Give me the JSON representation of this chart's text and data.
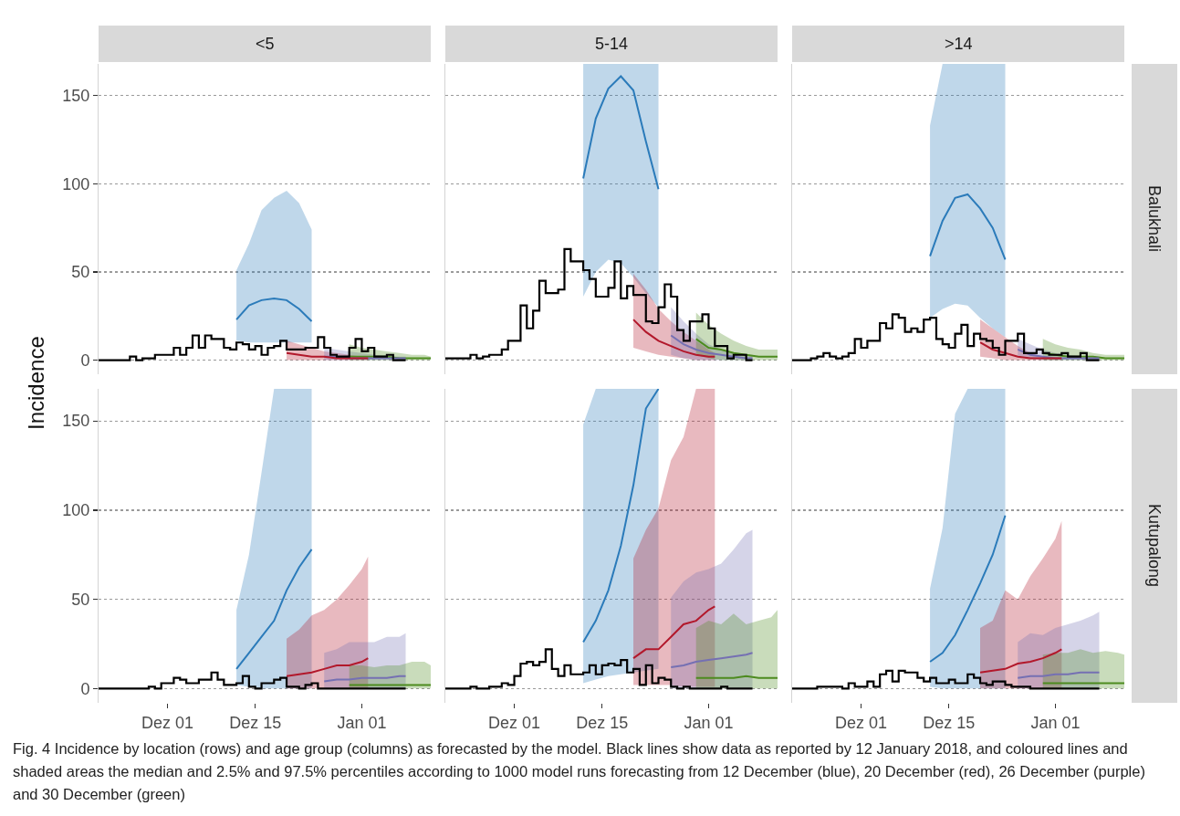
{
  "chart_data": [
    {
      "type": "step",
      "title": "<5",
      "ylabel": "Incidence",
      "tick_labels": "y",
      "grid": "y",
      "xlim": [
        "2017-11-20",
        "2018-01-12"
      ],
      "ylim": [
        -8,
        168
      ],
      "yticks": [
        0,
        50,
        100,
        150
      ],
      "x": [
        "2017-11-20",
        "2017-11-21",
        "2017-11-22",
        "2017-11-23",
        "2017-11-24",
        "2017-11-25",
        "2017-11-26",
        "2017-11-27",
        "2017-11-28",
        "2017-11-29",
        "2017-11-30",
        "2017-12-01",
        "2017-12-02",
        "2017-12-03",
        "2017-12-04",
        "2017-12-05",
        "2017-12-06",
        "2017-12-07",
        "2017-12-08",
        "2017-12-09",
        "2017-12-10",
        "2017-12-11",
        "2017-12-12",
        "2017-12-13",
        "2017-12-14",
        "2017-12-15",
        "2017-12-16",
        "2017-12-17",
        "2017-12-18",
        "2017-12-19",
        "2017-12-20",
        "2017-12-21",
        "2017-12-22",
        "2017-12-23",
        "2017-12-24",
        "2017-12-25",
        "2017-12-26",
        "2017-12-27",
        "2017-12-28",
        "2017-12-29",
        "2017-12-30",
        "2017-12-31",
        "2018-01-01",
        "2018-01-02",
        "2018-01-03",
        "2018-01-04",
        "2018-01-05",
        "2018-01-06",
        "2018-01-07",
        "2018-01-08"
      ],
      "series": [
        {
          "color": "#000000",
          "values": [
            0,
            0,
            0,
            0,
            0,
            2,
            0,
            1,
            1,
            3,
            3,
            3,
            7,
            3,
            7,
            14,
            7,
            14,
            12,
            12,
            7,
            6,
            10,
            9,
            6,
            8,
            3,
            7,
            8,
            11,
            6,
            6,
            6,
            7,
            7,
            13,
            7,
            3,
            2,
            2,
            7,
            12,
            5,
            7,
            2,
            2,
            3,
            0,
            0,
            0
          ]
        },
        {
          "type": "line",
          "color": "#2b7bba",
          "x": [
            "2017-12-12",
            "2017-12-14",
            "2017-12-16",
            "2017-12-18",
            "2017-12-20",
            "2017-12-22",
            "2017-12-24"
          ],
          "values": [
            23,
            31,
            34,
            35,
            34,
            29,
            22
          ],
          "lower": [
            11,
            10,
            10,
            10,
            10,
            10,
            10
          ],
          "upper": [
            51,
            66,
            85,
            92,
            96,
            89,
            74
          ]
        },
        {
          "type": "line",
          "color": "#b2182b",
          "x": [
            "2017-12-20",
            "2017-12-22",
            "2017-12-24",
            "2017-12-26",
            "2017-12-28",
            "2017-12-30",
            "2018-01-01",
            "2018-01-02"
          ],
          "values": [
            4,
            3,
            2,
            2,
            1,
            1,
            1,
            1
          ],
          "lower": [
            0,
            0,
            0,
            0,
            0,
            0,
            0,
            0
          ],
          "upper": [
            11,
            9,
            7,
            5,
            4,
            3,
            2,
            2
          ]
        },
        {
          "type": "line",
          "color": "#7570b3",
          "x": [
            "2017-12-26",
            "2017-12-28",
            "2017-12-30",
            "2018-01-01",
            "2018-01-03",
            "2018-01-05",
            "2018-01-07",
            "2018-01-08"
          ],
          "values": [
            2,
            2,
            1,
            1,
            1,
            1,
            1,
            1
          ],
          "lower": [
            0,
            0,
            0,
            0,
            0,
            0,
            0,
            0
          ],
          "upper": [
            7,
            6,
            5,
            4,
            3,
            2,
            2,
            2
          ]
        },
        {
          "type": "line",
          "color": "#4d8b1f",
          "x": [
            "2017-12-30",
            "2018-01-01",
            "2018-01-03",
            "2018-01-05",
            "2018-01-07",
            "2018-01-09",
            "2018-01-11",
            "2018-01-12"
          ],
          "values": [
            2,
            2,
            2,
            2,
            1,
            1,
            1,
            1
          ],
          "lower": [
            0,
            0,
            0,
            0,
            0,
            0,
            0,
            0
          ],
          "upper": [
            9,
            7,
            6,
            5,
            4,
            3,
            3,
            2
          ]
        }
      ]
    },
    {
      "type": "step",
      "title": "5-14",
      "tick_labels": false,
      "grid": "y",
      "xlim": [
        "2017-11-20",
        "2018-01-12"
      ],
      "ylim": [
        -8,
        168
      ],
      "yticks": [
        0,
        50,
        100,
        150
      ],
      "x": [
        "2017-11-20",
        "2017-11-21",
        "2017-11-22",
        "2017-11-23",
        "2017-11-24",
        "2017-11-25",
        "2017-11-26",
        "2017-11-27",
        "2017-11-28",
        "2017-11-29",
        "2017-11-30",
        "2017-12-01",
        "2017-12-02",
        "2017-12-03",
        "2017-12-04",
        "2017-12-05",
        "2017-12-06",
        "2017-12-07",
        "2017-12-08",
        "2017-12-09",
        "2017-12-10",
        "2017-12-11",
        "2017-12-12",
        "2017-12-13",
        "2017-12-14",
        "2017-12-15",
        "2017-12-16",
        "2017-12-17",
        "2017-12-18",
        "2017-12-19",
        "2017-12-20",
        "2017-12-21",
        "2017-12-22",
        "2017-12-23",
        "2017-12-24",
        "2017-12-25",
        "2017-12-26",
        "2017-12-27",
        "2017-12-28",
        "2017-12-29",
        "2017-12-30",
        "2017-12-31",
        "2018-01-01",
        "2018-01-02",
        "2018-01-03",
        "2018-01-04",
        "2018-01-05",
        "2018-01-06",
        "2018-01-07",
        "2018-01-08"
      ],
      "series": [
        {
          "color": "#000000",
          "values": [
            1,
            1,
            1,
            1,
            3,
            1,
            2,
            3,
            3,
            6,
            11,
            11,
            31,
            18,
            28,
            45,
            38,
            38,
            40,
            63,
            56,
            56,
            51,
            46,
            36,
            36,
            41,
            56,
            35,
            42,
            37,
            37,
            22,
            21,
            30,
            43,
            36,
            17,
            11,
            22,
            22,
            26,
            18,
            8,
            8,
            1,
            3,
            3,
            0,
            0
          ]
        },
        {
          "type": "line",
          "color": "#2b7bba",
          "x": [
            "2017-12-12",
            "2017-12-14",
            "2017-12-16",
            "2017-12-18",
            "2017-12-20",
            "2017-12-22",
            "2017-12-24"
          ],
          "values": [
            103,
            137,
            154,
            161,
            153,
            124,
            97
          ],
          "lower": [
            36,
            50,
            57,
            55,
            47,
            38,
            30
          ],
          "upper": [
            168,
            168,
            168,
            168,
            168,
            168,
            168
          ]
        },
        {
          "type": "line",
          "color": "#b2182b",
          "x": [
            "2017-12-20",
            "2017-12-22",
            "2017-12-24",
            "2017-12-26",
            "2017-12-28",
            "2017-12-30",
            "2018-01-01",
            "2018-01-02"
          ],
          "values": [
            23,
            16,
            11,
            8,
            5,
            3,
            2,
            2
          ],
          "lower": [
            7,
            5,
            3,
            2,
            1,
            0,
            0,
            0
          ],
          "upper": [
            49,
            40,
            29,
            22,
            16,
            11,
            6,
            4
          ]
        },
        {
          "type": "line",
          "color": "#7570b3",
          "x": [
            "2017-12-26",
            "2017-12-28",
            "2017-12-30",
            "2018-01-01",
            "2018-01-03",
            "2018-01-05",
            "2018-01-07",
            "2018-01-08"
          ],
          "values": [
            14,
            9,
            6,
            4,
            3,
            2,
            1,
            1
          ],
          "lower": [
            3,
            1,
            0,
            0,
            0,
            0,
            0,
            0
          ],
          "upper": [
            30,
            22,
            15,
            9,
            6,
            4,
            3,
            3
          ]
        },
        {
          "type": "line",
          "color": "#4d8b1f",
          "x": [
            "2017-12-30",
            "2018-01-01",
            "2018-01-03",
            "2018-01-05",
            "2018-01-07",
            "2018-01-09",
            "2018-01-11",
            "2018-01-12"
          ],
          "values": [
            12,
            7,
            6,
            4,
            3,
            2,
            2,
            2
          ],
          "lower": [
            3,
            1,
            0,
            0,
            0,
            0,
            0,
            0
          ],
          "upper": [
            27,
            20,
            15,
            11,
            8,
            6,
            6,
            6
          ]
        }
      ]
    },
    {
      "type": "step",
      "title": ">14",
      "annotations": [
        "Balukhali"
      ],
      "tick_labels": false,
      "grid": "y",
      "xlim": [
        "2017-11-20",
        "2018-01-12"
      ],
      "ylim": [
        -8,
        168
      ],
      "yticks": [
        0,
        50,
        100,
        150
      ],
      "x": [
        "2017-11-20",
        "2017-11-21",
        "2017-11-22",
        "2017-11-23",
        "2017-11-24",
        "2017-11-25",
        "2017-11-26",
        "2017-11-27",
        "2017-11-28",
        "2017-11-29",
        "2017-11-30",
        "2017-12-01",
        "2017-12-02",
        "2017-12-03",
        "2017-12-04",
        "2017-12-05",
        "2017-12-06",
        "2017-12-07",
        "2017-12-08",
        "2017-12-09",
        "2017-12-10",
        "2017-12-11",
        "2017-12-12",
        "2017-12-13",
        "2017-12-14",
        "2017-12-15",
        "2017-12-16",
        "2017-12-17",
        "2017-12-18",
        "2017-12-19",
        "2017-12-20",
        "2017-12-21",
        "2017-12-22",
        "2017-12-23",
        "2017-12-24",
        "2017-12-25",
        "2017-12-26",
        "2017-12-27",
        "2017-12-28",
        "2017-12-29",
        "2017-12-30",
        "2017-12-31",
        "2018-01-01",
        "2018-01-02",
        "2018-01-03",
        "2018-01-04",
        "2018-01-05",
        "2018-01-06",
        "2018-01-07",
        "2018-01-08"
      ],
      "series": [
        {
          "color": "#000000",
          "values": [
            0,
            0,
            0,
            1,
            2,
            4,
            2,
            1,
            2,
            4,
            12,
            7,
            11,
            11,
            21,
            18,
            26,
            24,
            16,
            18,
            16,
            23,
            24,
            12,
            9,
            7,
            15,
            20,
            8,
            15,
            12,
            11,
            7,
            3,
            11,
            11,
            15,
            4,
            4,
            6,
            4,
            3,
            3,
            4,
            2,
            2,
            4,
            0,
            0,
            0
          ]
        },
        {
          "type": "line",
          "color": "#2b7bba",
          "x": [
            "2017-12-12",
            "2017-12-14",
            "2017-12-16",
            "2017-12-18",
            "2017-12-20",
            "2017-12-22",
            "2017-12-24"
          ],
          "values": [
            59,
            79,
            92,
            94,
            86,
            75,
            57
          ],
          "lower": [
            24,
            29,
            32,
            31,
            24,
            18,
            13
          ],
          "upper": [
            133,
            168,
            168,
            168,
            168,
            168,
            168
          ]
        },
        {
          "type": "line",
          "color": "#b2182b",
          "x": [
            "2017-12-20",
            "2017-12-22",
            "2017-12-24",
            "2017-12-26",
            "2017-12-28",
            "2017-12-30",
            "2018-01-01",
            "2018-01-02"
          ],
          "values": [
            10,
            6,
            4,
            2,
            1,
            1,
            1,
            1
          ],
          "lower": [
            2,
            1,
            0,
            0,
            0,
            0,
            0,
            0
          ],
          "upper": [
            23,
            18,
            13,
            8,
            4,
            2,
            1,
            1
          ]
        },
        {
          "type": "line",
          "color": "#7570b3",
          "x": [
            "2017-12-26",
            "2017-12-28",
            "2017-12-30",
            "2018-01-01",
            "2018-01-03",
            "2018-01-05",
            "2018-01-07",
            "2018-01-08"
          ],
          "values": [
            6,
            3,
            2,
            1,
            1,
            1,
            1,
            1
          ],
          "lower": [
            2,
            1,
            0,
            0,
            0,
            0,
            0,
            0
          ],
          "upper": [
            12,
            9,
            6,
            4,
            3,
            2,
            2,
            2
          ]
        },
        {
          "type": "line",
          "color": "#4d8b1f",
          "x": [
            "2017-12-30",
            "2018-01-01",
            "2018-01-03",
            "2018-01-05",
            "2018-01-07",
            "2018-01-09",
            "2018-01-11",
            "2018-01-12"
          ],
          "values": [
            4,
            3,
            2,
            2,
            2,
            1,
            1,
            1
          ],
          "lower": [
            0,
            0,
            0,
            0,
            0,
            0,
            0,
            0
          ],
          "upper": [
            12,
            9,
            7,
            6,
            4,
            3,
            3,
            3
          ]
        }
      ]
    },
    {
      "type": "step",
      "grid": "y",
      "xlim": [
        "2017-11-20",
        "2018-01-12"
      ],
      "xticks": [
        {
          "value": "2017-12-01",
          "label": "Dez 01"
        },
        {
          "value": "2017-12-15",
          "label": "Dez 15"
        },
        {
          "value": "2018-01-01",
          "label": "Jan 01"
        }
      ],
      "ylim": [
        -8,
        168
      ],
      "yticks": [
        0,
        50,
        100,
        150
      ],
      "x": [
        "2017-11-20",
        "2017-11-21",
        "2017-11-22",
        "2017-11-23",
        "2017-11-24",
        "2017-11-25",
        "2017-11-26",
        "2017-11-27",
        "2017-11-28",
        "2017-11-29",
        "2017-11-30",
        "2017-12-01",
        "2017-12-02",
        "2017-12-03",
        "2017-12-04",
        "2017-12-05",
        "2017-12-06",
        "2017-12-07",
        "2017-12-08",
        "2017-12-09",
        "2017-12-10",
        "2017-12-11",
        "2017-12-12",
        "2017-12-13",
        "2017-12-14",
        "2017-12-15",
        "2017-12-16",
        "2017-12-17",
        "2017-12-18",
        "2017-12-19",
        "2017-12-20",
        "2017-12-21",
        "2017-12-22",
        "2017-12-23",
        "2017-12-24",
        "2017-12-25",
        "2017-12-26",
        "2017-12-27",
        "2017-12-28",
        "2017-12-29",
        "2017-12-30",
        "2017-12-31",
        "2018-01-01",
        "2018-01-02",
        "2018-01-03",
        "2018-01-04",
        "2018-01-05",
        "2018-01-06",
        "2018-01-07",
        "2018-01-08"
      ],
      "series": [
        {
          "color": "#000000",
          "values": [
            0,
            0,
            0,
            0,
            0,
            0,
            0,
            0,
            1,
            0,
            3,
            3,
            6,
            5,
            3,
            3,
            5,
            5,
            9,
            5,
            2,
            2,
            3,
            7,
            1,
            0,
            3,
            3,
            5,
            6,
            1,
            1,
            0,
            2,
            3,
            0,
            0,
            0,
            0,
            0,
            0,
            0,
            0,
            0,
            0,
            0,
            0,
            0,
            0,
            0
          ]
        },
        {
          "type": "line",
          "color": "#2b7bba",
          "x": [
            "2017-12-12",
            "2017-12-14",
            "2017-12-16",
            "2017-12-18",
            "2017-12-20",
            "2017-12-22",
            "2017-12-24"
          ],
          "values": [
            11,
            20,
            29,
            38,
            55,
            68,
            78
          ],
          "lower": [
            2,
            1,
            0,
            0,
            0,
            0,
            0
          ],
          "upper": [
            44,
            75,
            121,
            168,
            168,
            168,
            168
          ]
        },
        {
          "type": "line",
          "color": "#b2182b",
          "x": [
            "2017-12-20",
            "2017-12-22",
            "2017-12-24",
            "2017-12-26",
            "2017-12-28",
            "2017-12-30",
            "2018-01-01",
            "2018-01-02"
          ],
          "values": [
            7,
            8,
            9,
            11,
            13,
            13,
            15,
            17
          ],
          "lower": [
            0,
            0,
            0,
            0,
            0,
            0,
            0,
            0
          ],
          "upper": [
            28,
            33,
            41,
            44,
            50,
            58,
            67,
            74
          ]
        },
        {
          "type": "line",
          "color": "#7570b3",
          "x": [
            "2017-12-26",
            "2017-12-28",
            "2017-12-30",
            "2018-01-01",
            "2018-01-03",
            "2018-01-05",
            "2018-01-07",
            "2018-01-08"
          ],
          "values": [
            4,
            5,
            5,
            6,
            6,
            6,
            7,
            7
          ],
          "lower": [
            0,
            0,
            0,
            0,
            0,
            0,
            0,
            0
          ],
          "upper": [
            20,
            22,
            26,
            26,
            26,
            29,
            29,
            31
          ]
        },
        {
          "type": "line",
          "color": "#4d8b1f",
          "x": [
            "2017-12-30",
            "2018-01-01",
            "2018-01-03",
            "2018-01-05",
            "2018-01-07",
            "2018-01-09",
            "2018-01-11",
            "2018-01-12"
          ],
          "values": [
            2,
            2,
            2,
            2,
            2,
            2,
            2,
            2
          ],
          "lower": [
            0,
            0,
            0,
            0,
            0,
            0,
            0,
            0
          ],
          "upper": [
            13,
            13,
            12,
            13,
            13,
            15,
            15,
            13
          ]
        }
      ]
    },
    {
      "type": "step",
      "tick_labels": "x",
      "grid": "y",
      "xlim": [
        "2017-11-20",
        "2018-01-12"
      ],
      "xticks": [
        {
          "value": "2017-12-01",
          "label": "Dez 01"
        },
        {
          "value": "2017-12-15",
          "label": "Dez 15"
        },
        {
          "value": "2018-01-01",
          "label": "Jan 01"
        }
      ],
      "ylim": [
        -8,
        168
      ],
      "yticks": [
        0,
        50,
        100,
        150
      ],
      "x": [
        "2017-11-20",
        "2017-11-21",
        "2017-11-22",
        "2017-11-23",
        "2017-11-24",
        "2017-11-25",
        "2017-11-26",
        "2017-11-27",
        "2017-11-28",
        "2017-11-29",
        "2017-11-30",
        "2017-12-01",
        "2017-12-02",
        "2017-12-03",
        "2017-12-04",
        "2017-12-05",
        "2017-12-06",
        "2017-12-07",
        "2017-12-08",
        "2017-12-09",
        "2017-12-10",
        "2017-12-11",
        "2017-12-12",
        "2017-12-13",
        "2017-12-14",
        "2017-12-15",
        "2017-12-16",
        "2017-12-17",
        "2017-12-18",
        "2017-12-19",
        "2017-12-20",
        "2017-12-21",
        "2017-12-22",
        "2017-12-23",
        "2017-12-24",
        "2017-12-25",
        "2017-12-26",
        "2017-12-27",
        "2017-12-28",
        "2017-12-29",
        "2017-12-30",
        "2017-12-31",
        "2018-01-01",
        "2018-01-02",
        "2018-01-03",
        "2018-01-04",
        "2018-01-05",
        "2018-01-06",
        "2018-01-07",
        "2018-01-08"
      ],
      "series": [
        {
          "color": "#000000",
          "values": [
            0,
            0,
            0,
            0,
            1,
            0,
            0,
            1,
            1,
            3,
            2,
            7,
            14,
            15,
            13,
            15,
            22,
            11,
            7,
            13,
            8,
            8,
            9,
            13,
            8,
            13,
            14,
            13,
            16,
            9,
            11,
            2,
            13,
            3,
            6,
            5,
            1,
            0,
            1,
            0,
            0,
            0,
            0,
            0,
            1,
            0,
            0,
            0,
            0,
            0
          ]
        },
        {
          "type": "line",
          "color": "#2b7bba",
          "x": [
            "2017-12-12",
            "2017-12-14",
            "2017-12-16",
            "2017-12-18",
            "2017-12-20",
            "2017-12-22",
            "2017-12-24"
          ],
          "values": [
            26,
            38,
            55,
            80,
            114,
            157,
            168
          ],
          "lower": [
            3,
            5,
            7,
            8,
            9,
            10,
            11
          ],
          "upper": [
            148,
            168,
            168,
            168,
            168,
            168,
            168
          ]
        },
        {
          "type": "line",
          "color": "#b2182b",
          "x": [
            "2017-12-20",
            "2017-12-22",
            "2017-12-24",
            "2017-12-26",
            "2017-12-28",
            "2017-12-30",
            "2018-01-01",
            "2018-01-02"
          ],
          "values": [
            17,
            22,
            22,
            29,
            36,
            38,
            44,
            46
          ],
          "lower": [
            2,
            2,
            2,
            2,
            1,
            1,
            1,
            1
          ],
          "upper": [
            73,
            89,
            101,
            128,
            141,
            168,
            168,
            168
          ]
        },
        {
          "type": "line",
          "color": "#7570b3",
          "x": [
            "2017-12-26",
            "2017-12-28",
            "2017-12-30",
            "2018-01-01",
            "2018-01-03",
            "2018-01-05",
            "2018-01-07",
            "2018-01-08"
          ],
          "values": [
            12,
            13,
            15,
            16,
            17,
            18,
            19,
            20
          ],
          "lower": [
            0,
            0,
            0,
            0,
            0,
            0,
            0,
            0
          ],
          "upper": [
            51,
            60,
            65,
            67,
            70,
            78,
            87,
            89
          ]
        },
        {
          "type": "line",
          "color": "#4d8b1f",
          "x": [
            "2017-12-30",
            "2018-01-01",
            "2018-01-03",
            "2018-01-05",
            "2018-01-07",
            "2018-01-09",
            "2018-01-11",
            "2018-01-12"
          ],
          "values": [
            6,
            6,
            6,
            6,
            7,
            6,
            6,
            6
          ],
          "lower": [
            0,
            0,
            0,
            0,
            0,
            0,
            0,
            0
          ],
          "upper": [
            34,
            38,
            36,
            42,
            36,
            38,
            40,
            44
          ]
        }
      ]
    },
    {
      "type": "step",
      "annotations": [
        "Kutupalong",
        "Fig. 4 Incidence by location (rows) and age group (columns) as forecasted by the model. Black lines show data as reported by 12 January 2018, and coloured lines and shaded areas the median and 2.5% and 97.5% percentiles according to 1000 model runs forecasting from 12 December (blue), 20 December (red), 26 December (purple) and 30 December (green)"
      ],
      "tick_labels": "x",
      "grid": "y",
      "xlim": [
        "2017-11-20",
        "2018-01-12"
      ],
      "xticks": [
        {
          "value": "2017-12-01",
          "label": "Dez 01"
        },
        {
          "value": "2017-12-15",
          "label": "Dez 15"
        },
        {
          "value": "2018-01-01",
          "label": "Jan 01"
        }
      ],
      "ylim": [
        -8,
        168
      ],
      "yticks": [
        0,
        50,
        100,
        150
      ],
      "x": [
        "2017-11-20",
        "2017-11-21",
        "2017-11-22",
        "2017-11-23",
        "2017-11-24",
        "2017-11-25",
        "2017-11-26",
        "2017-11-27",
        "2017-11-28",
        "2017-11-29",
        "2017-11-30",
        "2017-12-01",
        "2017-12-02",
        "2017-12-03",
        "2017-12-04",
        "2017-12-05",
        "2017-12-06",
        "2017-12-07",
        "2017-12-08",
        "2017-12-09",
        "2017-12-10",
        "2017-12-11",
        "2017-12-12",
        "2017-12-13",
        "2017-12-14",
        "2017-12-15",
        "2017-12-16",
        "2017-12-17",
        "2017-12-18",
        "2017-12-19",
        "2017-12-20",
        "2017-12-21",
        "2017-12-22",
        "2017-12-23",
        "2017-12-24",
        "2017-12-25",
        "2017-12-26",
        "2017-12-27",
        "2017-12-28",
        "2017-12-29",
        "2017-12-30",
        "2017-12-31",
        "2018-01-01",
        "2018-01-02",
        "2018-01-03",
        "2018-01-04",
        "2018-01-05",
        "2018-01-06",
        "2018-01-07",
        "2018-01-08"
      ],
      "series": [
        {
          "color": "#000000",
          "values": [
            0,
            0,
            0,
            0,
            1,
            1,
            1,
            1,
            0,
            3,
            1,
            1,
            4,
            1,
            8,
            10,
            4,
            10,
            9,
            9,
            6,
            4,
            6,
            3,
            3,
            5,
            3,
            3,
            8,
            6,
            3,
            2,
            4,
            4,
            2,
            1,
            1,
            1,
            0,
            0,
            0,
            0,
            0,
            0,
            0,
            0,
            0,
            0,
            0,
            0
          ]
        },
        {
          "type": "line",
          "color": "#2b7bba",
          "x": [
            "2017-12-12",
            "2017-12-14",
            "2017-12-16",
            "2017-12-18",
            "2017-12-20",
            "2017-12-22",
            "2017-12-24"
          ],
          "values": [
            15,
            20,
            30,
            44,
            59,
            75,
            97
          ],
          "lower": [
            1,
            0,
            0,
            0,
            0,
            0,
            0
          ],
          "upper": [
            56,
            90,
            154,
            168,
            168,
            168,
            168
          ]
        },
        {
          "type": "line",
          "color": "#b2182b",
          "x": [
            "2017-12-20",
            "2017-12-22",
            "2017-12-24",
            "2017-12-26",
            "2017-12-28",
            "2017-12-30",
            "2018-01-01",
            "2018-01-02"
          ],
          "values": [
            9,
            10,
            11,
            14,
            15,
            17,
            20,
            22
          ],
          "lower": [
            0,
            0,
            0,
            0,
            0,
            0,
            0,
            0
          ],
          "upper": [
            34,
            38,
            55,
            50,
            63,
            73,
            84,
            94
          ]
        },
        {
          "type": "line",
          "color": "#7570b3",
          "x": [
            "2017-12-26",
            "2017-12-28",
            "2017-12-30",
            "2018-01-01",
            "2018-01-03",
            "2018-01-05",
            "2018-01-07",
            "2018-01-08"
          ],
          "values": [
            6,
            7,
            7,
            8,
            8,
            9,
            9,
            9
          ],
          "lower": [
            0,
            0,
            0,
            0,
            0,
            0,
            0,
            0
          ],
          "upper": [
            26,
            31,
            30,
            34,
            36,
            38,
            41,
            43
          ]
        },
        {
          "type": "line",
          "color": "#4d8b1f",
          "x": [
            "2017-12-30",
            "2018-01-01",
            "2018-01-03",
            "2018-01-05",
            "2018-01-07",
            "2018-01-09",
            "2018-01-11",
            "2018-01-12"
          ],
          "values": [
            3,
            3,
            3,
            3,
            3,
            3,
            3,
            3
          ],
          "lower": [
            0,
            0,
            0,
            0,
            0,
            0,
            0,
            0
          ],
          "upper": [
            19,
            20,
            20,
            22,
            20,
            21,
            20,
            19
          ]
        }
      ]
    }
  ]
}
